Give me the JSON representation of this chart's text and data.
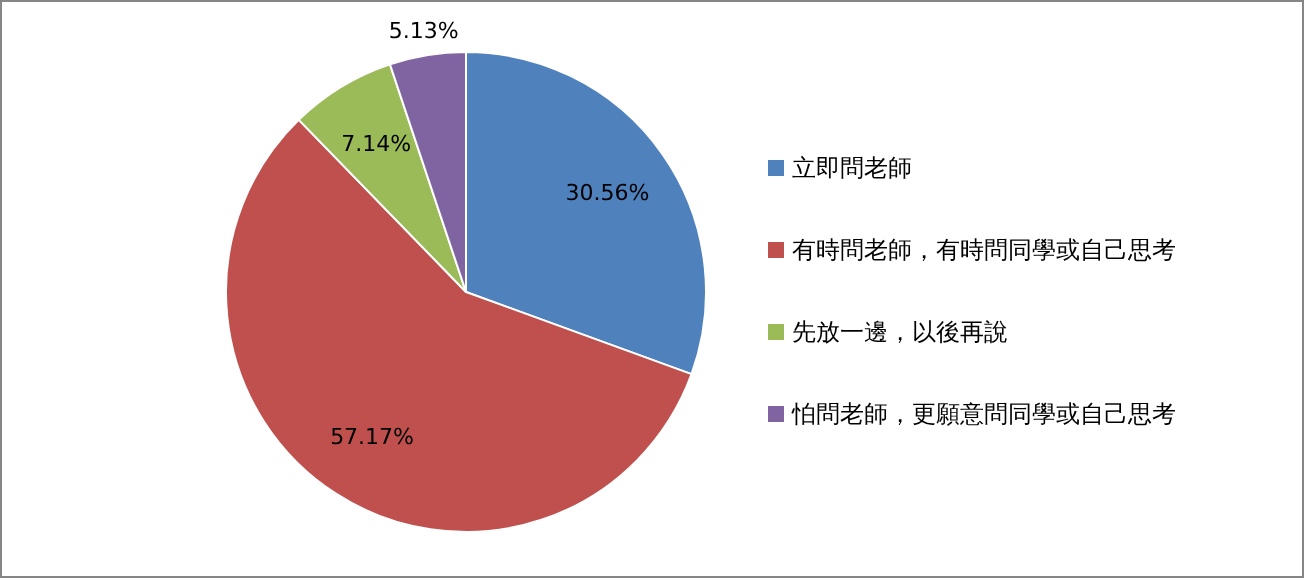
{
  "chart_data": {
    "type": "pie",
    "categories": [
      "立即問老師",
      "有時問老師，有時問同學或自己思考",
      "先放一邊，以後再說",
      "怕問老師，更願意問同學或自己思考"
    ],
    "values": [
      30.56,
      57.17,
      7.14,
      5.13
    ],
    "colors": [
      "#4f81bd",
      "#c0504d",
      "#9bbb59",
      "#8064a2"
    ],
    "value_labels": [
      "30.56%",
      "57.17%",
      "7.14%",
      "5.13%"
    ],
    "legend": "right"
  }
}
